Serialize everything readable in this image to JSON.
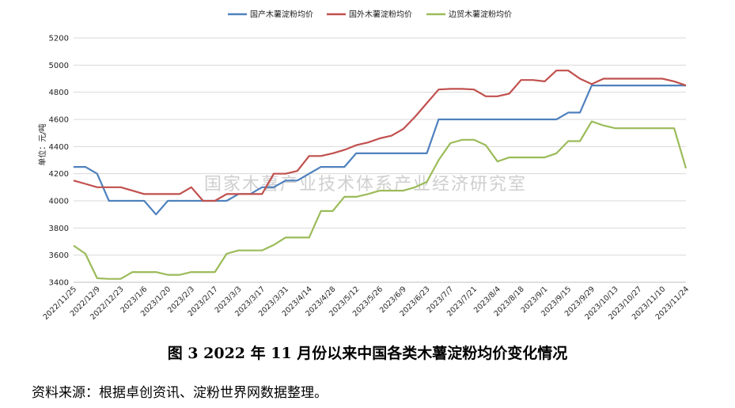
{
  "chart_data": {
    "type": "line",
    "ylabel": "单位：元/吨",
    "ylim": [
      3400,
      5200
    ],
    "yticks": [
      3400,
      3600,
      3800,
      4000,
      4200,
      4400,
      4600,
      4800,
      5000,
      5200
    ],
    "grid": true,
    "legend_position": "top-center",
    "x": [
      "2022/11/25",
      "2022/12/2",
      "2022/12/9",
      "2022/12/16",
      "2022/12/23",
      "2022/12/30",
      "2023/1/6",
      "2023/1/13",
      "2023/1/20",
      "2023/1/27",
      "2023/2/3",
      "2023/2/10",
      "2023/2/17",
      "2023/2/24",
      "2023/3/3",
      "2023/3/10",
      "2023/3/17",
      "2023/3/24",
      "2023/3/31",
      "2023/4/7",
      "2023/4/14",
      "2023/4/21",
      "2023/4/28",
      "2023/5/5",
      "2023/5/12",
      "2023/5/19",
      "2023/5/26",
      "2023/6/2",
      "2023/6/9",
      "2023/6/16",
      "2023/6/23",
      "2023/6/30",
      "2023/7/7",
      "2023/7/14",
      "2023/7/21",
      "2023/7/28",
      "2023/8/4",
      "2023/8/11",
      "2023/8/18",
      "2023/8/25",
      "2023/9/1",
      "2023/9/8",
      "2023/9/15",
      "2023/9/22",
      "2023/9/29",
      "2023/10/6",
      "2023/10/13",
      "2023/10/20",
      "2023/10/27",
      "2023/11/3",
      "2023/11/10",
      "2023/11/17",
      "2023/11/24"
    ],
    "xtick_labels": [
      "2022/11/25",
      "2022/12/9",
      "2022/12/23",
      "2023/1/6",
      "2023/1/20",
      "2023/2/3",
      "2023/2/17",
      "2023/3/3",
      "2023/3/17",
      "2023/3/31",
      "2023/4/14",
      "2023/4/28",
      "2023/5/12",
      "2023/5/26",
      "2023/6/9",
      "2023/6/23",
      "2023/7/7",
      "2023/7/21",
      "2023/8/4",
      "2023/8/18",
      "2023/9/1",
      "2023/9/15",
      "2023/9/29",
      "2023/10/13",
      "2023/10/27",
      "2023/11/10",
      "2023/11/24"
    ],
    "series": [
      {
        "name": "国产木薯淀粉均价",
        "color": "#4f81bd",
        "values": [
          4250,
          4250,
          4200,
          4000,
          4000,
          4000,
          4000,
          3900,
          4000,
          4000,
          4000,
          4000,
          4000,
          4000,
          4050,
          4050,
          4100,
          4100,
          4150,
          4150,
          4200,
          4250,
          4250,
          4250,
          4350,
          4350,
          4350,
          4350,
          4350,
          4350,
          4350,
          4600,
          4600,
          4600,
          4600,
          4600,
          4600,
          4600,
          4600,
          4600,
          4600,
          4600,
          4650,
          4650,
          4850,
          4850,
          4850,
          4850,
          4850,
          4850,
          4850,
          4850,
          4850
        ]
      },
      {
        "name": "国外木薯淀粉均价",
        "color": "#c0504d",
        "values": [
          4150,
          4125,
          4100,
          4100,
          4100,
          4075,
          4050,
          4050,
          4050,
          4050,
          4100,
          4000,
          4000,
          4050,
          4050,
          4050,
          4050,
          4200,
          4200,
          4220,
          4330,
          4330,
          4350,
          4375,
          4410,
          4430,
          4460,
          4480,
          4530,
          4620,
          4720,
          4820,
          4825,
          4825,
          4820,
          4770,
          4770,
          4790,
          4890,
          4890,
          4880,
          4960,
          4960,
          4900,
          4860,
          4900,
          4900,
          4900,
          4900,
          4900,
          4900,
          4880,
          4850
        ]
      },
      {
        "name": "边贸木薯淀粉均价",
        "color": "#9bbb59",
        "values": [
          3670,
          3610,
          3430,
          3425,
          3425,
          3475,
          3475,
          3475,
          3455,
          3455,
          3475,
          3475,
          3475,
          3610,
          3635,
          3635,
          3635,
          3675,
          3730,
          3730,
          3730,
          3925,
          3925,
          4030,
          4030,
          4050,
          4075,
          4075,
          4075,
          4100,
          4140,
          4300,
          4425,
          4450,
          4450,
          4410,
          4290,
          4320,
          4320,
          4320,
          4320,
          4350,
          4440,
          4440,
          4585,
          4555,
          4535,
          4535,
          4535,
          4535,
          4535,
          4535,
          4240
        ]
      }
    ]
  },
  "watermark": "国家木薯产业技术体系产业经济研究室",
  "caption": "图 3   2022 年 11 月份以来中国各类木薯淀粉均价变化情况",
  "source": "资料来源：根据卓创资讯、淀粉世界网数据整理。"
}
